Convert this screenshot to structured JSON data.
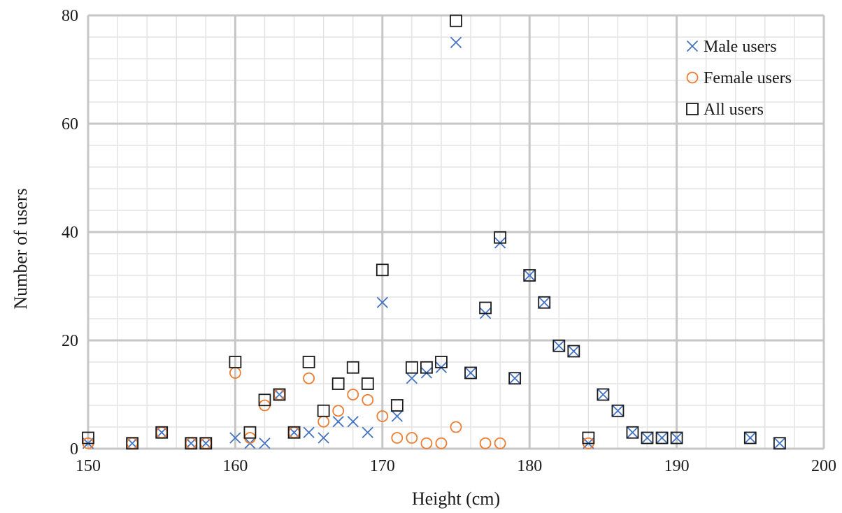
{
  "chart_data": {
    "type": "scatter",
    "title": "",
    "xlabel": "Height (cm)",
    "ylabel": "Number of users",
    "xlim": [
      150,
      200
    ],
    "ylim": [
      0,
      80
    ],
    "x_ticks": [
      150,
      160,
      170,
      180,
      190,
      200
    ],
    "y_ticks": [
      0,
      20,
      40,
      60,
      80
    ],
    "x_minor_step": 2,
    "y_minor_step": 4,
    "grid": true,
    "legend_position": "top-right",
    "series": [
      {
        "name": "Male users",
        "marker": "x",
        "color": "#4472C4",
        "x": [
          150,
          153,
          155,
          157,
          158,
          160,
          161,
          162,
          163,
          164,
          165,
          166,
          167,
          168,
          169,
          170,
          171,
          172,
          173,
          174,
          175,
          176,
          177,
          178,
          179,
          180,
          181,
          182,
          183,
          184,
          185,
          186,
          187,
          188,
          189,
          190,
          195,
          197
        ],
        "y": [
          1,
          1,
          3,
          1,
          1,
          2,
          1,
          1,
          10,
          3,
          3,
          2,
          5,
          5,
          3,
          27,
          6,
          13,
          14,
          15,
          75,
          14,
          25,
          38,
          13,
          32,
          27,
          19,
          18,
          1,
          10,
          7,
          3,
          2,
          2,
          2,
          2,
          1
        ]
      },
      {
        "name": "Female users",
        "marker": "circle",
        "color": "#ED7D31",
        "x": [
          150,
          153,
          155,
          157,
          158,
          160,
          161,
          162,
          163,
          164,
          165,
          166,
          167,
          168,
          169,
          170,
          171,
          172,
          173,
          174,
          175,
          177,
          178,
          184
        ],
        "y": [
          1,
          1,
          3,
          1,
          1,
          14,
          2,
          8,
          10,
          3,
          13,
          5,
          7,
          10,
          9,
          6,
          2,
          2,
          1,
          1,
          4,
          1,
          1,
          1
        ]
      },
      {
        "name": "All users",
        "marker": "square",
        "color": "#1a1a1a",
        "x": [
          150,
          153,
          155,
          157,
          158,
          160,
          161,
          162,
          163,
          164,
          165,
          166,
          167,
          168,
          169,
          170,
          171,
          172,
          173,
          174,
          175,
          176,
          177,
          178,
          179,
          180,
          181,
          182,
          183,
          184,
          185,
          186,
          187,
          188,
          189,
          190,
          195,
          197
        ],
        "y": [
          2,
          1,
          3,
          1,
          1,
          16,
          3,
          9,
          10,
          3,
          16,
          7,
          12,
          15,
          12,
          33,
          8,
          15,
          15,
          16,
          79,
          14,
          26,
          39,
          13,
          32,
          27,
          19,
          18,
          2,
          10,
          7,
          3,
          2,
          2,
          2,
          2,
          1
        ]
      }
    ]
  }
}
